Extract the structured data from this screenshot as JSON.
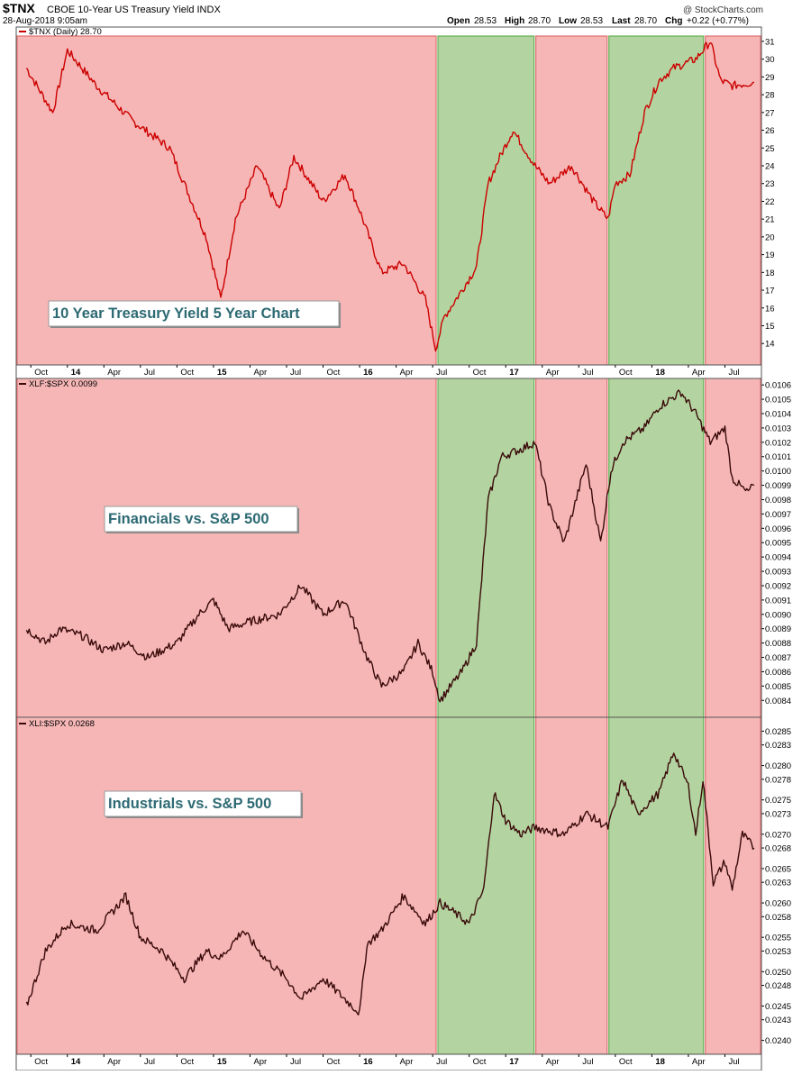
{
  "header": {
    "symbol": "$TNX",
    "description": "CBOE 10-Year US Treasury Yield INDX",
    "watermark": "@ StockCharts.com",
    "date": "28-Aug-2018 9:05am",
    "quote": {
      "open_label": "Open",
      "open": "28.53",
      "high_label": "High",
      "high": "28.70",
      "low_label": "Low",
      "low": "28.53",
      "last_label": "Last",
      "last": "28.70",
      "chg_label": "Chg",
      "chg": "+0.22 (+0.77%)"
    }
  },
  "colors": {
    "red_zone": "#f6b6b6",
    "red_border": "#e07070",
    "green_zone": "#b3d4a0",
    "green_border": "#66b055",
    "tnx_line": "#cc0000",
    "ratio_line": "#3a0a0a"
  },
  "chart_data": [
    {
      "type": "line",
      "panel": "tnx",
      "legend": "$TNX (Daily) 28.70",
      "annotation": "10 Year Treasury Yield 5 Year Chart",
      "ylim": [
        13.2,
        31.3
      ],
      "yticks": [
        "31",
        "30",
        "29",
        "28",
        "27",
        "26",
        "25",
        "24",
        "23",
        "22",
        "21",
        "20",
        "19",
        "18",
        "17",
        "16",
        "15",
        "14"
      ],
      "x": [
        2013.72,
        2013.9,
        2014.0,
        2014.2,
        2014.45,
        2014.7,
        2014.85,
        2014.95,
        2015.05,
        2015.15,
        2015.3,
        2015.45,
        2015.55,
        2015.75,
        2015.9,
        2016.0,
        2016.15,
        2016.3,
        2016.45,
        2016.52,
        2016.58,
        2016.7,
        2016.8,
        2016.88,
        2016.96,
        2017.05,
        2017.2,
        2017.3,
        2017.45,
        2017.6,
        2017.7,
        2017.75,
        2017.85,
        2017.95,
        2018.05,
        2018.15,
        2018.3,
        2018.4,
        2018.47,
        2018.55,
        2018.7
      ],
      "values": [
        29.5,
        27.0,
        30.5,
        28.5,
        26.5,
        25.0,
        22.0,
        20.0,
        16.5,
        21.0,
        24.0,
        21.5,
        24.5,
        22.0,
        23.5,
        21.5,
        18.0,
        18.5,
        16.5,
        13.7,
        15.5,
        17.0,
        18.3,
        23.0,
        24.5,
        26.0,
        24.0,
        23.0,
        24.0,
        22.0,
        21.0,
        23.0,
        23.5,
        27.0,
        28.8,
        29.5,
        30.0,
        31.0,
        28.8,
        28.5,
        28.7
      ]
    },
    {
      "type": "line",
      "panel": "xlf",
      "legend": "XLF:$SPX 0.0099",
      "annotation": "Financials vs. S&P 500",
      "ylim": [
        0.00832,
        0.01062
      ],
      "yticks": [
        "0.0106",
        "0.0105",
        "0.0104",
        "0.0103",
        "0.0102",
        "0.0101",
        "0.0100",
        "0.0099",
        "0.0098",
        "0.0097",
        "0.0096",
        "0.0095",
        "0.0094",
        "0.0093",
        "0.0092",
        "0.0091",
        "0.0090",
        "0.0089",
        "0.0088",
        "0.0087",
        "0.0086",
        "0.0085",
        "0.0084"
      ],
      "x": [
        2013.72,
        2013.85,
        2013.95,
        2014.1,
        2014.25,
        2014.4,
        2014.55,
        2014.75,
        2014.9,
        2015.0,
        2015.1,
        2015.25,
        2015.45,
        2015.6,
        2015.75,
        2015.9,
        2016.05,
        2016.15,
        2016.3,
        2016.4,
        2016.5,
        2016.55,
        2016.7,
        2016.8,
        2016.88,
        2016.97,
        2017.1,
        2017.2,
        2017.3,
        2017.4,
        2017.55,
        2017.65,
        2017.72,
        2017.8,
        2017.95,
        2018.05,
        2018.2,
        2018.3,
        2018.4,
        2018.5,
        2018.55,
        2018.65,
        2018.7
      ],
      "values": [
        0.0089,
        0.0088,
        0.0089,
        0.00885,
        0.00875,
        0.0088,
        0.0087,
        0.0088,
        0.009,
        0.0091,
        0.0089,
        0.00895,
        0.009,
        0.0092,
        0.009,
        0.0091,
        0.0087,
        0.0085,
        0.0086,
        0.0088,
        0.0086,
        0.0084,
        0.0086,
        0.0088,
        0.0098,
        0.0101,
        0.01015,
        0.0102,
        0.00975,
        0.0095,
        0.01005,
        0.0095,
        0.01,
        0.0102,
        0.0103,
        0.01045,
        0.01055,
        0.0104,
        0.0102,
        0.0103,
        0.00995,
        0.00985,
        0.0099
      ]
    },
    {
      "type": "line",
      "panel": "xli",
      "legend": "XLI:$SPX 0.0268",
      "annotation": "Industrials vs. S&P 500",
      "ylim": [
        0.02385,
        0.02865
      ],
      "yticks": [
        "0.0285",
        "0.0283",
        "0.0280",
        "0.0278",
        "0.0275",
        "0.0273",
        "0.0270",
        "0.0268",
        "0.0265",
        "0.0263",
        "0.0260",
        "0.0258",
        "0.0255",
        "0.0253",
        "0.0250",
        "0.0248",
        "0.0245",
        "0.0243",
        "0.0240"
      ],
      "x": [
        2013.72,
        2013.85,
        2014.0,
        2014.2,
        2014.4,
        2014.5,
        2014.65,
        2014.8,
        2014.95,
        2015.05,
        2015.2,
        2015.35,
        2015.5,
        2015.6,
        2015.75,
        2015.9,
        2016.0,
        2016.05,
        2016.15,
        2016.3,
        2016.45,
        2016.55,
        2016.62,
        2016.75,
        2016.85,
        2016.92,
        2017.0,
        2017.1,
        2017.2,
        2017.4,
        2017.55,
        2017.7,
        2017.8,
        2017.9,
        2018.05,
        2018.15,
        2018.25,
        2018.3,
        2018.35,
        2018.42,
        2018.5,
        2018.55,
        2018.62,
        2018.7
      ],
      "values": [
        0.0245,
        0.0253,
        0.0257,
        0.0256,
        0.0261,
        0.0255,
        0.0253,
        0.0249,
        0.0253,
        0.0252,
        0.0256,
        0.0252,
        0.0249,
        0.0246,
        0.0249,
        0.0246,
        0.0244,
        0.0254,
        0.0256,
        0.0261,
        0.0257,
        0.026,
        0.0259,
        0.0257,
        0.0262,
        0.0276,
        0.0272,
        0.027,
        0.0271,
        0.027,
        0.0273,
        0.0271,
        0.0278,
        0.0273,
        0.0276,
        0.0282,
        0.0277,
        0.027,
        0.0278,
        0.0263,
        0.0266,
        0.0262,
        0.027,
        0.0268
      ]
    }
  ],
  "x_axis": {
    "ticks": [
      {
        "label": "Oct",
        "x": 2013.75,
        "bold": false
      },
      {
        "label": "14",
        "x": 2014.0,
        "bold": true
      },
      {
        "label": "Apr",
        "x": 2014.25,
        "bold": false
      },
      {
        "label": "Jul",
        "x": 2014.5,
        "bold": false
      },
      {
        "label": "Oct",
        "x": 2014.75,
        "bold": false
      },
      {
        "label": "15",
        "x": 2015.0,
        "bold": true
      },
      {
        "label": "Apr",
        "x": 2015.25,
        "bold": false
      },
      {
        "label": "Jul",
        "x": 2015.5,
        "bold": false
      },
      {
        "label": "Oct",
        "x": 2015.75,
        "bold": false
      },
      {
        "label": "16",
        "x": 2016.0,
        "bold": true
      },
      {
        "label": "Apr",
        "x": 2016.25,
        "bold": false
      },
      {
        "label": "Jul",
        "x": 2016.5,
        "bold": false
      },
      {
        "label": "Oct",
        "x": 2016.75,
        "bold": false
      },
      {
        "label": "17",
        "x": 2017.0,
        "bold": true
      },
      {
        "label": "Apr",
        "x": 2017.25,
        "bold": false
      },
      {
        "label": "Jul",
        "x": 2017.5,
        "bold": false
      },
      {
        "label": "Oct",
        "x": 2017.75,
        "bold": false
      },
      {
        "label": "18",
        "x": 2018.0,
        "bold": true
      },
      {
        "label": "Apr",
        "x": 2018.25,
        "bold": false
      },
      {
        "label": "Jul",
        "x": 2018.5,
        "bold": false
      }
    ]
  },
  "zones": [
    {
      "start": 2013.65,
      "end": 2016.53,
      "color": "red"
    },
    {
      "start": 2016.53,
      "end": 2017.2,
      "color": "green"
    },
    {
      "start": 2017.2,
      "end": 2017.7,
      "color": "red"
    },
    {
      "start": 2017.7,
      "end": 2018.36,
      "color": "green"
    },
    {
      "start": 2018.36,
      "end": 2018.75,
      "color": "red"
    }
  ]
}
